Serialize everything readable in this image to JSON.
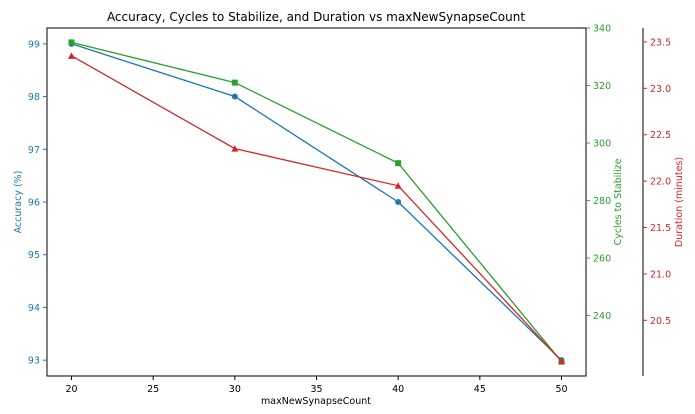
{
  "chart_data": {
    "type": "line",
    "title": "Accuracy, Cycles to Stabilize, and Duration vs maxNewSynapseCount",
    "xlabel": "maxNewSynapseCount",
    "x": [
      20,
      30,
      40,
      50
    ],
    "xlim": [
      18.5,
      51.5
    ],
    "xticks": [
      "20",
      "25",
      "30",
      "35",
      "40",
      "45",
      "50"
    ],
    "grid": false,
    "series": [
      {
        "name": "Accuracy (%)",
        "axis": "left",
        "color": "#1f77b4",
        "marker": "circle",
        "values": [
          99,
          98,
          96,
          93
        ],
        "ylim": [
          92.7,
          99.3
        ],
        "yticks": [
          "93",
          "94",
          "95",
          "96",
          "97",
          "98",
          "99"
        ]
      },
      {
        "name": "Cycles to Stabilize",
        "axis": "right",
        "color": "#2ca02c",
        "marker": "square",
        "values": [
          335,
          321,
          293,
          224
        ],
        "ylim": [
          219,
          340
        ],
        "yticks": [
          "240",
          "260",
          "280",
          "300",
          "320",
          "340"
        ]
      },
      {
        "name": "Duration (minutes)",
        "axis": "right-offset",
        "color": "#d62728",
        "marker": "triangle",
        "values": [
          23.35,
          22.35,
          21.95,
          20.06
        ],
        "ylim": [
          19.9,
          23.65
        ],
        "yticks": [
          "20.5",
          "21.0",
          "21.5",
          "22.0",
          "22.5",
          "23.0",
          "23.5"
        ]
      }
    ]
  }
}
